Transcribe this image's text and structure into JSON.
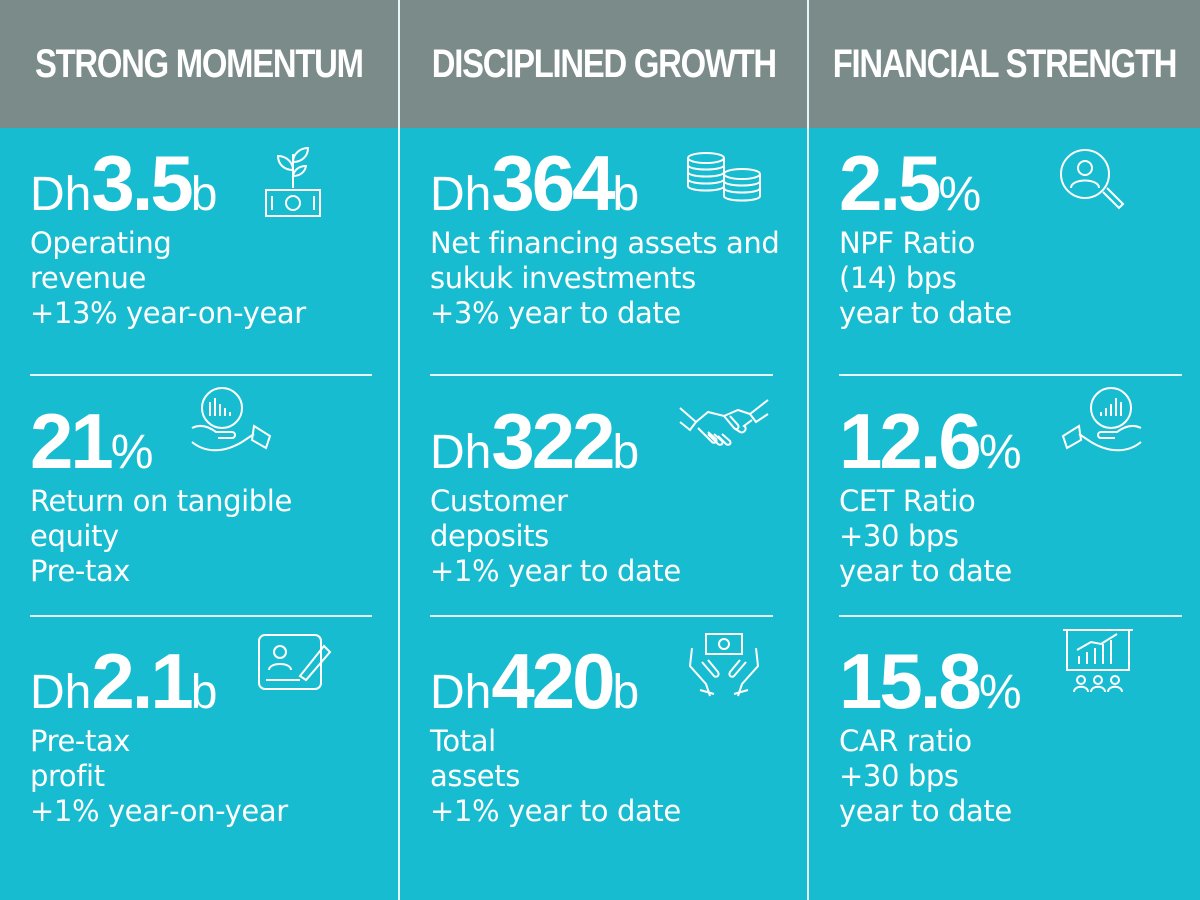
{
  "columns": [
    {
      "header": "STRONG MOMENTUM",
      "metrics": [
        {
          "prefix": "Dh",
          "value": "3.5",
          "suffix": "b",
          "lines": [
            "Operating",
            "revenue",
            "+13% year-on-year"
          ],
          "icon": "plant-money-icon"
        },
        {
          "prefix": "",
          "value": "21",
          "suffix": "%",
          "lines": [
            "Return on tangible",
            "equity",
            "Pre-tax"
          ],
          "icon": "hand-chart-icon"
        },
        {
          "prefix": "Dh",
          "value": "2.1",
          "suffix": "b",
          "lines": [
            "Pre-tax",
            "profit",
            "+1% year-on-year"
          ],
          "icon": "signature-card-icon"
        }
      ]
    },
    {
      "header": "DISCIPLINED GROWTH",
      "metrics": [
        {
          "prefix": "Dh",
          "value": "364",
          "suffix": "b",
          "lines": [
            "Net financing assets and",
            "sukuk investments",
            "+3% year to date"
          ],
          "icon": "coin-stack-icon"
        },
        {
          "prefix": "Dh",
          "value": "322",
          "suffix": "b",
          "lines": [
            "Customer",
            "deposits",
            "+1% year to date"
          ],
          "icon": "handshake-icon"
        },
        {
          "prefix": "Dh",
          "value": "420",
          "suffix": "b",
          "lines": [
            "Total",
            "assets",
            "+1% year to date"
          ],
          "icon": "hands-banknote-icon"
        }
      ]
    },
    {
      "header": "FINANCIAL STRENGTH",
      "metrics": [
        {
          "prefix": "",
          "value": "2.5",
          "suffix": "%",
          "lines": [
            "NPF Ratio",
            "(14) bps",
            "year to date"
          ],
          "icon": "search-person-icon"
        },
        {
          "prefix": "",
          "value": "12.6",
          "suffix": "%",
          "lines": [
            "CET Ratio",
            "+30 bps",
            "year to date"
          ],
          "icon": "hand-chart-icon"
        },
        {
          "prefix": "",
          "value": "15.8",
          "suffix": "%",
          "lines": [
            "CAR ratio",
            "+30 bps",
            "year to date"
          ],
          "icon": "presentation-board-icon"
        }
      ]
    }
  ],
  "colors": {
    "header_bg": "#7a8b8a",
    "panel_bg": "#18bcd0",
    "text": "#ffffff"
  }
}
